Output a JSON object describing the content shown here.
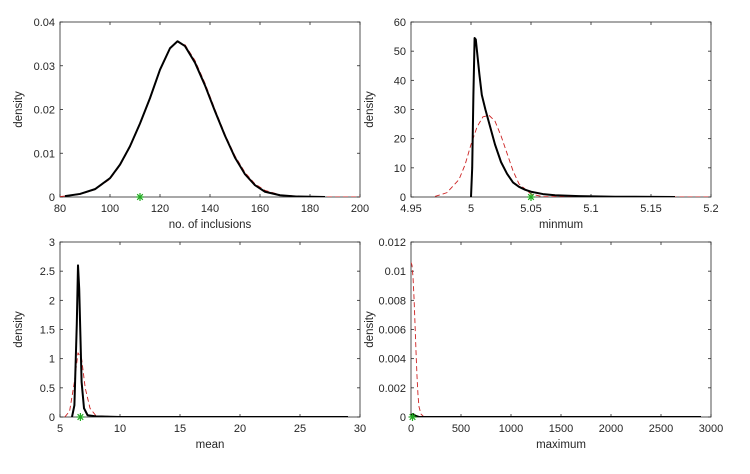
{
  "chart_data": [
    {
      "type": "line",
      "xlabel": "no. of inclusions",
      "ylabel": "density",
      "xlim": [
        80,
        200
      ],
      "ylim": [
        0,
        0.04
      ],
      "xticks": [
        80,
        100,
        120,
        140,
        160,
        180,
        200
      ],
      "yticks": [
        0,
        0.01,
        0.02,
        0.03,
        0.04
      ],
      "xtick_labels": [
        "80",
        "100",
        "120",
        "140",
        "160",
        "180",
        "200"
      ],
      "ytick_labels": [
        "0",
        "0.01",
        "0.02",
        "0.03",
        "0.04"
      ],
      "series": [
        {
          "style": "solid",
          "color": "#000000",
          "x": [
            82,
            88,
            94,
            100,
            104,
            108,
            112,
            116,
            120,
            124,
            127,
            130,
            134,
            138,
            142,
            146,
            150,
            154,
            158,
            162,
            168,
            175,
            186
          ],
          "y": [
            0.0002,
            0.0007,
            0.0018,
            0.0043,
            0.0074,
            0.0116,
            0.0168,
            0.0226,
            0.0291,
            0.034,
            0.0356,
            0.0345,
            0.0307,
            0.0255,
            0.0196,
            0.014,
            0.009,
            0.0052,
            0.0027,
            0.0012,
            0.0004,
            0.0001,
            0.0
          ]
        },
        {
          "style": "dashed",
          "color": "#cc2222",
          "x": [
            80,
            88,
            94,
            100,
            104,
            108,
            112,
            116,
            120,
            124,
            127,
            130,
            134,
            138,
            142,
            146,
            150,
            154,
            158,
            162,
            168,
            176,
            190,
            200
          ],
          "y": [
            0.0001,
            0.0006,
            0.0017,
            0.0041,
            0.0072,
            0.0114,
            0.0166,
            0.0224,
            0.0289,
            0.0339,
            0.0355,
            0.0348,
            0.0312,
            0.026,
            0.02,
            0.0143,
            0.0094,
            0.0056,
            0.003,
            0.0015,
            0.0005,
            0.0001,
            0.0,
            0.0
          ]
        }
      ],
      "markers": [
        {
          "x": 112,
          "y": 0,
          "symbol": "*",
          "color": "#22aa22"
        }
      ]
    },
    {
      "type": "line",
      "xlabel": "minmum",
      "ylabel": "density",
      "xlim": [
        4.95,
        5.2
      ],
      "ylim": [
        0,
        60
      ],
      "xticks": [
        4.95,
        5.0,
        5.05,
        5.1,
        5.15,
        5.2
      ],
      "yticks": [
        0,
        10,
        20,
        30,
        40,
        50,
        60
      ],
      "xtick_labels": [
        "4.95",
        "5",
        "5.05",
        "5.1",
        "5.15",
        "5.2"
      ],
      "ytick_labels": [
        "0",
        "10",
        "20",
        "30",
        "40",
        "50",
        "60"
      ],
      "series": [
        {
          "style": "solid",
          "color": "#000000",
          "x": [
            5.0,
            5.001,
            5.002,
            5.003,
            5.004,
            5.005,
            5.007,
            5.009,
            5.012,
            5.016,
            5.02,
            5.025,
            5.03,
            5.035,
            5.04,
            5.045,
            5.05,
            5.06,
            5.07,
            5.09,
            5.12,
            5.17
          ],
          "y": [
            0,
            10,
            35,
            54.5,
            54,
            50,
            42,
            35,
            30,
            24,
            18,
            12,
            8,
            5,
            3.5,
            2.5,
            1.8,
            1.0,
            0.6,
            0.3,
            0.1,
            0.0
          ]
        },
        {
          "style": "dashed",
          "color": "#cc2222",
          "x": [
            4.97,
            4.98,
            4.99,
            4.995,
            5.0,
            5.005,
            5.01,
            5.015,
            5.02,
            5.025,
            5.03,
            5.035,
            5.04,
            5.05,
            5.06,
            5.2
          ],
          "y": [
            0.2,
            1.5,
            6,
            11,
            18,
            24,
            27.5,
            28,
            26,
            21,
            15,
            9,
            4.5,
            1.0,
            0.1,
            0.0
          ]
        }
      ],
      "markers": [
        {
          "x": 5.05,
          "y": 0,
          "symbol": "*",
          "color": "#22aa22"
        }
      ]
    },
    {
      "type": "line",
      "xlabel": "mean",
      "ylabel": "density",
      "xlim": [
        5,
        30
      ],
      "ylim": [
        0,
        3
      ],
      "xticks": [
        5,
        10,
        15,
        20,
        25,
        30
      ],
      "yticks": [
        0,
        0.5,
        1,
        1.5,
        2,
        2.5,
        3
      ],
      "xtick_labels": [
        "5",
        "10",
        "15",
        "20",
        "25",
        "30"
      ],
      "ytick_labels": [
        "0",
        "0.5",
        "1",
        "1.5",
        "2",
        "2.5",
        "3"
      ],
      "series": [
        {
          "style": "solid",
          "color": "#000000",
          "x": [
            6.0,
            6.2,
            6.4,
            6.5,
            6.6,
            6.7,
            6.8,
            7.0,
            7.3,
            8.0,
            10,
            15,
            20,
            25,
            29
          ],
          "y": [
            0.0,
            0.2,
            1.6,
            2.6,
            2.2,
            1.4,
            0.6,
            0.15,
            0.03,
            0.01,
            0.0,
            0.0,
            0.0,
            0.0,
            0.0
          ]
        },
        {
          "style": "dashed",
          "color": "#cc2222",
          "x": [
            5.4,
            5.8,
            6.2,
            6.5,
            6.8,
            7.1,
            7.5,
            8.0,
            10,
            15,
            20,
            25,
            29
          ],
          "y": [
            0.0,
            0.1,
            0.6,
            1.1,
            1.0,
            0.5,
            0.15,
            0.02,
            0.0,
            0.0,
            0.0,
            0.0,
            0.0
          ]
        }
      ],
      "markers": [
        {
          "x": 6.7,
          "y": 0,
          "symbol": "*",
          "color": "#22aa22"
        }
      ]
    },
    {
      "type": "line",
      "xlabel": "maximum",
      "ylabel": "density",
      "xlim": [
        0,
        3000
      ],
      "ylim": [
        0,
        0.012
      ],
      "xticks": [
        0,
        500,
        1000,
        1500,
        2000,
        2500,
        3000
      ],
      "yticks": [
        0,
        0.002,
        0.004,
        0.006,
        0.008,
        0.01,
        0.012
      ],
      "xtick_labels": [
        "0",
        "500",
        "1000",
        "1500",
        "2000",
        "2500",
        "3000"
      ],
      "ytick_labels": [
        "0",
        "0.002",
        "0.004",
        "0.006",
        "0.008",
        "0.01",
        "0.012"
      ],
      "series": [
        {
          "style": "solid",
          "color": "#000000",
          "x": [
            0,
            20,
            40,
            60,
            80,
            100,
            500,
            1000,
            1500,
            2000,
            2500,
            2900
          ],
          "y": [
            0.0001,
            0.0002,
            0.0001,
            5e-05,
            0.0,
            0.0,
            0.0,
            0.0,
            0.0,
            0.0,
            0.0,
            0.0
          ]
        },
        {
          "style": "dashed",
          "color": "#cc2222",
          "x": [
            0,
            10,
            20,
            30,
            40,
            50,
            60,
            70,
            80,
            100,
            130,
            200,
            500,
            1000,
            2000,
            2900
          ],
          "y": [
            0.0106,
            0.0104,
            0.0096,
            0.0082,
            0.0064,
            0.0045,
            0.0028,
            0.0015,
            0.0007,
            0.0002,
            0.0,
            0.0,
            0.0,
            0.0,
            0.0,
            0.0
          ]
        }
      ],
      "markers": [
        {
          "x": 15,
          "y": 0,
          "symbol": "*",
          "color": "#22aa22"
        }
      ]
    }
  ]
}
